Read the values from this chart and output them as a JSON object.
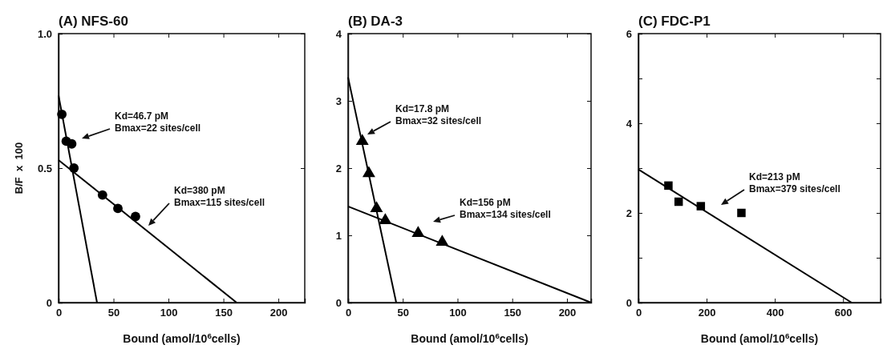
{
  "chart_data": [
    {
      "type": "scatter",
      "title": "(A) NFS-60",
      "xlabel": "Bound (amol/10$^{6}$cells)",
      "ylabel": "B/F  x  100",
      "xlim": [
        0,
        224
      ],
      "ylim": [
        0,
        1.0
      ],
      "xticks": [
        0,
        50,
        100,
        150,
        200
      ],
      "yticks": [
        0,
        0.5,
        {
          "value": 1.0,
          "label": "1.0"
        }
      ],
      "series": [
        {
          "marker": "circle",
          "color": "#000000",
          "x": [
            3,
            7,
            12,
            14,
            40,
            54,
            70
          ],
          "values": [
            0.7,
            0.6,
            0.59,
            0.5,
            0.4,
            0.35,
            0.32
          ]
        },
        {
          "type": "line",
          "line_style": "solid",
          "color": "#000000",
          "x": [
            0,
            35
          ],
          "values": [
            0.77,
            0
          ]
        },
        {
          "type": "line",
          "line_style": "solid",
          "color": "#000000",
          "x": [
            0,
            162
          ],
          "values": [
            0.53,
            0
          ]
        }
      ],
      "annotations": [
        "Kd=46.7 pM\nBmax=22 sites/cell",
        "Kd=380 pM\nBmax=115 sites/cell"
      ]
    },
    {
      "type": "scatter",
      "title": "(B) DA-3",
      "xlabel": "Bound (amol/10$^{6}$cells)",
      "xlim": [
        0,
        222
      ],
      "ylim": [
        0,
        4
      ],
      "xticks": [
        0,
        50,
        100,
        150,
        200
      ],
      "yticks": [
        0,
        1,
        2,
        3,
        4
      ],
      "series": [
        {
          "marker": "triangle",
          "color": "#000000",
          "x": [
            13,
            19,
            26,
            34,
            64,
            86
          ],
          "values": [
            2.4,
            1.92,
            1.4,
            1.22,
            1.03,
            0.9
          ]
        },
        {
          "type": "line",
          "line_style": "solid",
          "color": "#000000",
          "x": [
            0,
            44
          ],
          "values": [
            3.35,
            0
          ]
        },
        {
          "type": "line",
          "line_style": "solid",
          "color": "#000000",
          "x": [
            0,
            222
          ],
          "values": [
            1.43,
            0
          ]
        }
      ],
      "annotations": [
        "Kd=17.8 pM\nBmax=32 sites/cell",
        "Kd=156 pM\nBmax=134 sites/cell"
      ]
    },
    {
      "type": "scatter",
      "title": "(C) FDC-P1",
      "xlabel": "Bound (amol/10$^{6}$cells)",
      "xlim": [
        0,
        710
      ],
      "ylim": [
        0,
        6
      ],
      "xticks": [
        0,
        200,
        400,
        600
      ],
      "yticks": [
        0,
        {
          "value": 1,
          "label": null
        },
        2,
        {
          "value": 3,
          "label": null
        },
        4,
        {
          "value": 5,
          "label": null
        },
        6
      ],
      "series": [
        {
          "marker": "square",
          "color": "#000000",
          "x": [
            88,
            118,
            183,
            302
          ],
          "values": [
            2.61,
            2.25,
            2.15,
            2.0
          ]
        },
        {
          "type": "line",
          "line_style": "solid",
          "color": "#000000",
          "x": [
            0,
            625
          ],
          "values": [
            2.97,
            0
          ]
        }
      ],
      "annotations": [
        "Kd=213 pM\nBmax=379 sites/cell"
      ]
    }
  ]
}
